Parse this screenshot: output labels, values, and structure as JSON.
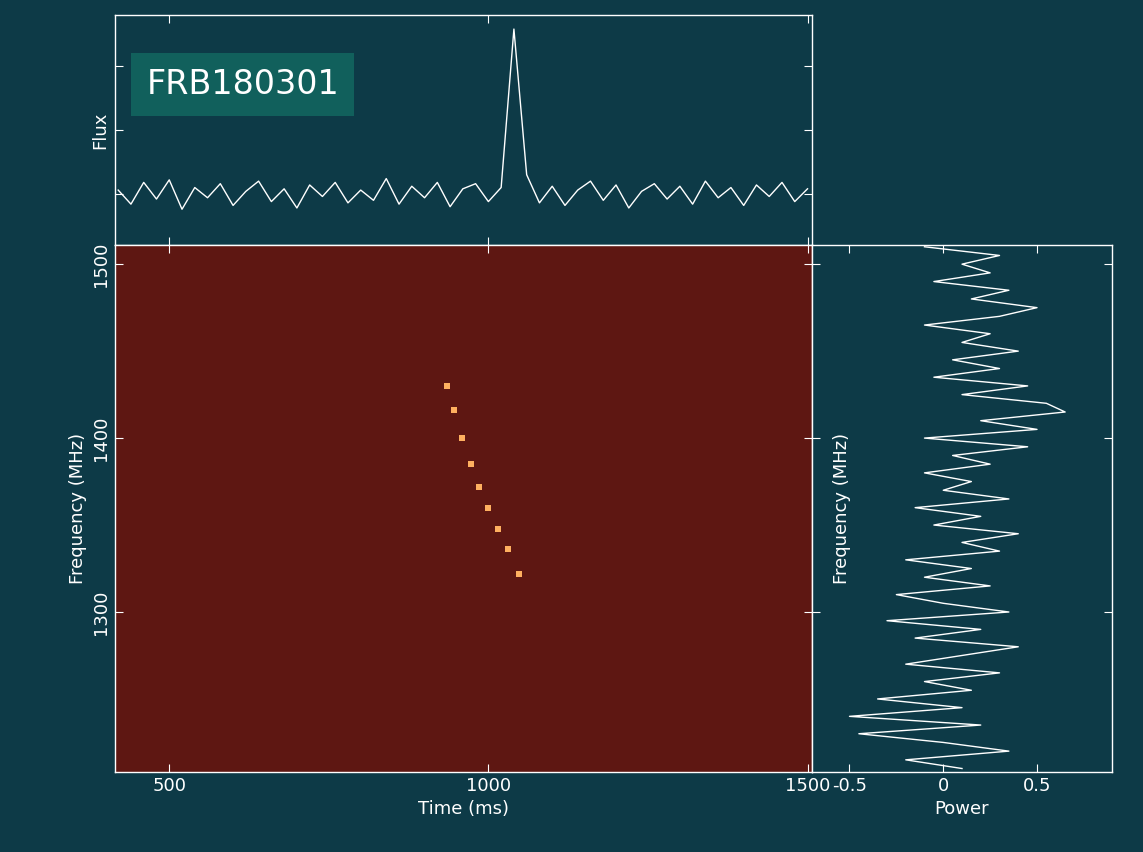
{
  "chart_data": [
    {
      "type": "line",
      "title": "FRB180301",
      "ylabel": "Flux",
      "x": [
        420,
        440,
        460,
        480,
        500,
        520,
        540,
        560,
        580,
        600,
        620,
        640,
        660,
        680,
        700,
        720,
        740,
        760,
        780,
        800,
        820,
        840,
        860,
        880,
        900,
        920,
        940,
        960,
        980,
        1000,
        1020,
        1040,
        1060,
        1080,
        1100,
        1120,
        1140,
        1160,
        1180,
        1200,
        1220,
        1240,
        1260,
        1280,
        1300,
        1320,
        1340,
        1360,
        1380,
        1400,
        1420,
        1440,
        1460,
        1480,
        1500
      ],
      "values": [
        0.3,
        -0.8,
        0.9,
        -0.4,
        1.1,
        -1.2,
        0.5,
        -0.3,
        0.8,
        -0.9,
        0.2,
        1.0,
        -0.6,
        0.4,
        -1.1,
        0.7,
        -0.2,
        0.9,
        -0.7,
        0.3,
        -0.5,
        1.2,
        -0.8,
        0.6,
        -0.3,
        0.9,
        -1.0,
        0.4,
        0.8,
        -0.6,
        0.5,
        12.9,
        1.5,
        -0.7,
        0.6,
        -0.9,
        0.3,
        1.0,
        -0.5,
        0.7,
        -1.1,
        0.2,
        0.8,
        -0.4,
        0.6,
        -0.8,
        1.0,
        -0.3,
        0.5,
        -0.9,
        0.7,
        -0.2,
        0.9,
        -0.6,
        0.4
      ],
      "color": "#ffffff",
      "xlim": [
        415,
        1507
      ],
      "xticks": [
        500,
        1000,
        1500
      ],
      "ylim": [
        -4,
        14
      ],
      "yticks": [
        0,
        5,
        10
      ],
      "tick_labels": false
    },
    {
      "type": "scatter",
      "xlabel": "Time (ms)",
      "ylabel": "Frequency (MHz)",
      "x": [
        935,
        946,
        958,
        972,
        985,
        1000,
        1015,
        1030,
        1048
      ],
      "y": [
        1430,
        1416,
        1400,
        1385,
        1372,
        1360,
        1348,
        1336,
        1322
      ],
      "color": "#ffb060",
      "xlim": [
        415,
        1507
      ],
      "xticks": [
        500,
        1000,
        1500
      ],
      "ylim": [
        1208,
        1511
      ],
      "yticks": [
        1300,
        1400,
        1500
      ]
    },
    {
      "type": "line",
      "orientation": "horizontal",
      "xlabel": "Power",
      "ylabel": "Frequency (MHz)",
      "y": [
        1210,
        1215,
        1220,
        1225,
        1230,
        1235,
        1240,
        1245,
        1250,
        1255,
        1260,
        1265,
        1270,
        1275,
        1280,
        1285,
        1290,
        1295,
        1300,
        1305,
        1310,
        1315,
        1320,
        1325,
        1330,
        1335,
        1340,
        1345,
        1350,
        1355,
        1360,
        1365,
        1370,
        1375,
        1380,
        1385,
        1390,
        1395,
        1400,
        1405,
        1410,
        1415,
        1420,
        1425,
        1430,
        1435,
        1440,
        1445,
        1450,
        1455,
        1460,
        1465,
        1470,
        1475,
        1480,
        1485,
        1490,
        1495,
        1500,
        1505,
        1510
      ],
      "values": [
        0.1,
        -0.2,
        0.35,
        0.0,
        -0.45,
        0.2,
        -0.5,
        0.1,
        -0.35,
        0.15,
        -0.1,
        0.3,
        -0.2,
        0.1,
        0.4,
        -0.15,
        0.2,
        -0.3,
        0.35,
        0.0,
        -0.25,
        0.25,
        -0.1,
        0.15,
        -0.2,
        0.3,
        0.1,
        0.4,
        -0.05,
        0.2,
        -0.15,
        0.35,
        0.0,
        0.15,
        -0.1,
        0.25,
        0.05,
        0.45,
        -0.1,
        0.5,
        0.2,
        0.65,
        0.55,
        0.1,
        0.45,
        -0.05,
        0.3,
        0.05,
        0.4,
        0.1,
        0.25,
        -0.1,
        0.3,
        0.5,
        0.15,
        0.35,
        -0.05,
        0.25,
        0.1,
        0.3,
        -0.1
      ],
      "color": "#ffffff",
      "xlim": [
        -0.7,
        0.9
      ],
      "xticks": [
        -0.5,
        0,
        0.5
      ],
      "ylim": [
        1208,
        1511
      ],
      "yticks": [
        1300,
        1400,
        1500
      ],
      "tick_labels": "x"
    }
  ]
}
